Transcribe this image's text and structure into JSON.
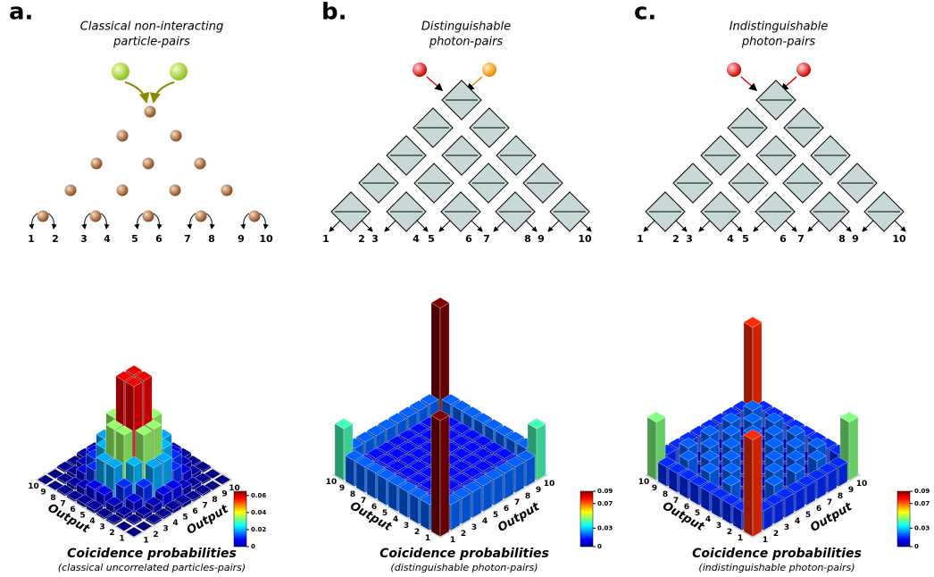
{
  "colormap": "jet",
  "panels": [
    {
      "letter": "a.",
      "title_lines": [
        "Classical non-interacting",
        "particle-pairs"
      ],
      "outputs": [
        1,
        2,
        3,
        4,
        5,
        6,
        7,
        8,
        9,
        10
      ],
      "axis_label": "Output",
      "axis_ticks": [
        1,
        2,
        3,
        4,
        5,
        6,
        7,
        8,
        9,
        10
      ],
      "matrix": [
        [
          0.0,
          0.0,
          0.001,
          0.001,
          0.002,
          0.002,
          0.001,
          0.001,
          0.0,
          0.0
        ],
        [
          0.0,
          0.001,
          0.002,
          0.004,
          0.007,
          0.007,
          0.004,
          0.002,
          0.001,
          0.0
        ],
        [
          0.001,
          0.002,
          0.006,
          0.011,
          0.019,
          0.019,
          0.011,
          0.006,
          0.002,
          0.001
        ],
        [
          0.001,
          0.004,
          0.011,
          0.02,
          0.034,
          0.034,
          0.02,
          0.011,
          0.004,
          0.001
        ],
        [
          0.002,
          0.007,
          0.019,
          0.034,
          0.058,
          0.058,
          0.034,
          0.019,
          0.007,
          0.002
        ],
        [
          0.002,
          0.007,
          0.019,
          0.034,
          0.058,
          0.058,
          0.034,
          0.019,
          0.007,
          0.002
        ],
        [
          0.001,
          0.004,
          0.011,
          0.02,
          0.034,
          0.034,
          0.02,
          0.011,
          0.004,
          0.001
        ],
        [
          0.001,
          0.002,
          0.006,
          0.011,
          0.019,
          0.019,
          0.011,
          0.006,
          0.002,
          0.001
        ],
        [
          0.0,
          0.001,
          0.002,
          0.004,
          0.007,
          0.007,
          0.004,
          0.002,
          0.001,
          0.0
        ],
        [
          0.0,
          0.0,
          0.001,
          0.001,
          0.002,
          0.002,
          0.001,
          0.001,
          0.0,
          0.0
        ]
      ],
      "zlim": [
        0,
        0.065
      ],
      "colorbar_ticks": [
        0,
        0.02,
        0.04,
        0.06
      ],
      "caption": "Coicidence probabilities",
      "subcaption": "(classical uncorrelated particles-pairs)"
    },
    {
      "letter": "b.",
      "title_lines": [
        "Distinguishable",
        "photon-pairs"
      ],
      "outputs": [
        1,
        2,
        3,
        4,
        5,
        6,
        7,
        8,
        9,
        10
      ],
      "axis_label": "Output",
      "axis_ticks": [
        1,
        2,
        3,
        4,
        5,
        6,
        7,
        8,
        9,
        10
      ],
      "matrix": [
        [
          0.09,
          0.02,
          0.02,
          0.02,
          0.02,
          0.02,
          0.02,
          0.02,
          0.02,
          0.04
        ],
        [
          0.02,
          0.012,
          0.012,
          0.012,
          0.012,
          0.012,
          0.012,
          0.012,
          0.012,
          0.02
        ],
        [
          0.02,
          0.012,
          0.012,
          0.012,
          0.012,
          0.012,
          0.012,
          0.012,
          0.012,
          0.02
        ],
        [
          0.02,
          0.012,
          0.012,
          0.012,
          0.012,
          0.012,
          0.012,
          0.012,
          0.012,
          0.02
        ],
        [
          0.02,
          0.012,
          0.012,
          0.012,
          0.012,
          0.012,
          0.012,
          0.012,
          0.012,
          0.02
        ],
        [
          0.02,
          0.012,
          0.012,
          0.012,
          0.012,
          0.012,
          0.012,
          0.012,
          0.012,
          0.02
        ],
        [
          0.02,
          0.012,
          0.012,
          0.012,
          0.012,
          0.012,
          0.012,
          0.012,
          0.012,
          0.02
        ],
        [
          0.02,
          0.012,
          0.012,
          0.012,
          0.012,
          0.012,
          0.012,
          0.012,
          0.012,
          0.02
        ],
        [
          0.02,
          0.012,
          0.012,
          0.012,
          0.012,
          0.012,
          0.012,
          0.012,
          0.012,
          0.02
        ],
        [
          0.04,
          0.02,
          0.02,
          0.02,
          0.02,
          0.02,
          0.02,
          0.02,
          0.02,
          0.09
        ]
      ],
      "zlim": [
        0,
        0.09
      ],
      "colorbar_ticks": [
        0,
        0.03,
        0.07,
        0.09
      ],
      "caption": "Coicidence probabilities",
      "subcaption": "(distinguishable photon-pairs)"
    },
    {
      "letter": "c.",
      "title_lines": [
        "Indistinguishable",
        "photon-pairs"
      ],
      "outputs": [
        1,
        2,
        3,
        4,
        5,
        6,
        7,
        8,
        9,
        10
      ],
      "axis_label": "Output",
      "axis_ticks": [
        1,
        2,
        3,
        4,
        5,
        6,
        7,
        8,
        9,
        10
      ],
      "matrix": [
        [
          0.075,
          0.015,
          0.015,
          0.015,
          0.015,
          0.015,
          0.015,
          0.015,
          0.015,
          0.045
        ],
        [
          0.015,
          0.02,
          0.005,
          0.02,
          0.005,
          0.02,
          0.005,
          0.02,
          0.005,
          0.015
        ],
        [
          0.015,
          0.005,
          0.02,
          0.005,
          0.02,
          0.005,
          0.02,
          0.005,
          0.02,
          0.015
        ],
        [
          0.015,
          0.02,
          0.005,
          0.02,
          0.005,
          0.02,
          0.005,
          0.02,
          0.005,
          0.015
        ],
        [
          0.015,
          0.005,
          0.02,
          0.005,
          0.02,
          0.005,
          0.02,
          0.005,
          0.02,
          0.015
        ],
        [
          0.015,
          0.02,
          0.005,
          0.02,
          0.005,
          0.02,
          0.005,
          0.02,
          0.005,
          0.015
        ],
        [
          0.015,
          0.005,
          0.02,
          0.005,
          0.02,
          0.005,
          0.02,
          0.005,
          0.02,
          0.015
        ],
        [
          0.015,
          0.02,
          0.005,
          0.02,
          0.005,
          0.02,
          0.005,
          0.02,
          0.005,
          0.015
        ],
        [
          0.015,
          0.005,
          0.02,
          0.005,
          0.02,
          0.005,
          0.02,
          0.005,
          0.02,
          0.015
        ],
        [
          0.045,
          0.015,
          0.015,
          0.015,
          0.015,
          0.015,
          0.015,
          0.015,
          0.015,
          0.075
        ]
      ],
      "zlim": [
        0,
        0.09
      ],
      "colorbar_ticks": [
        0,
        0.03,
        0.07,
        0.09
      ],
      "caption": "Coicidence probabilities",
      "subcaption": "(indistinguishable photon-pairs)"
    }
  ]
}
